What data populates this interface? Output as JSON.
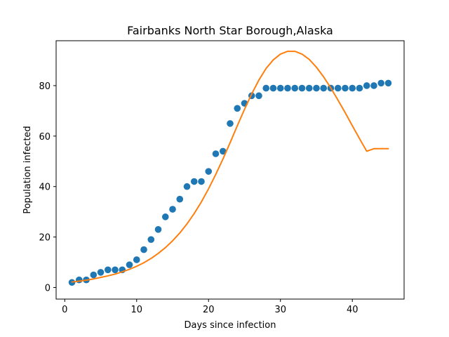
{
  "chart_data": {
    "type": "scatter",
    "title": "Fairbanks North Star Borough,Alaska",
    "xlabel": "Days since infection",
    "ylabel": "Population infected",
    "xlim": [
      -1.2,
      47.2
    ],
    "ylim": [
      -4.6,
      97.8
    ],
    "xticks": [
      0,
      10,
      20,
      30,
      40
    ],
    "yticks": [
      0,
      20,
      40,
      60,
      80
    ],
    "grid": false,
    "series": [
      {
        "type": "scatter",
        "color": "#1f77b4",
        "x": [
          1,
          2,
          3,
          4,
          5,
          6,
          7,
          8,
          9,
          10,
          11,
          12,
          13,
          14,
          15,
          16,
          17,
          18,
          19,
          20,
          21,
          22,
          23,
          24,
          25,
          26,
          27,
          28,
          29,
          30,
          31,
          32,
          33,
          34,
          35,
          36,
          37,
          38,
          39,
          40,
          41,
          42,
          43,
          44,
          45
        ],
        "y": [
          2,
          3,
          3,
          5,
          6,
          7,
          7,
          7,
          9,
          11,
          15,
          19,
          23,
          28,
          31,
          35,
          40,
          42,
          42,
          46,
          53,
          54,
          65,
          71,
          73,
          76,
          76,
          79,
          79,
          79,
          79,
          79,
          79,
          79,
          79,
          79,
          79,
          79,
          79,
          79,
          79,
          80,
          80,
          81,
          81
        ]
      },
      {
        "type": "line",
        "color": "#ff7f0e",
        "x": [
          1,
          2,
          3,
          4,
          5,
          6,
          7,
          8,
          9,
          10,
          11,
          12,
          13,
          14,
          15,
          16,
          17,
          18,
          19,
          20,
          21,
          22,
          23,
          24,
          25,
          26,
          27,
          28,
          29,
          30,
          31,
          32,
          33,
          34,
          35,
          36,
          37,
          38,
          39,
          40,
          41,
          42,
          43,
          44,
          45
        ],
        "y": [
          2.2,
          2.5,
          2.9,
          3.4,
          4.0,
          4.6,
          5.3,
          6.2,
          7.2,
          8.4,
          9.8,
          11.5,
          13.5,
          15.8,
          18.5,
          21.6,
          25.2,
          29.3,
          33.9,
          39.1,
          44.8,
          50.9,
          57.4,
          64.1,
          70.6,
          76.7,
          82.2,
          86.8,
          90.2,
          92.5,
          93.6,
          93.6,
          92.5,
          90.4,
          87.3,
          83.5,
          79.1,
          74.3,
          69.3,
          64.1,
          59.0,
          54.0,
          55.0,
          55.0,
          55.0
        ]
      }
    ]
  }
}
